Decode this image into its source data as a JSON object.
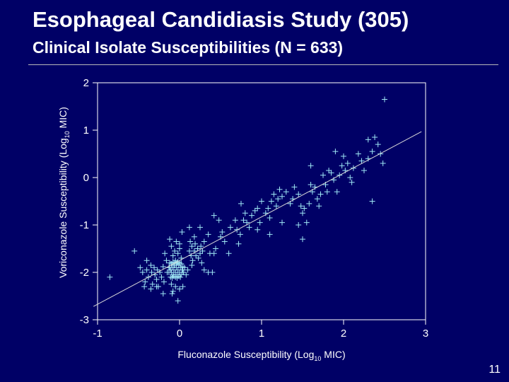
{
  "slide": {
    "title": "Esophageal Candidiasis Study (305)",
    "subtitle": "Clinical Isolate Susceptibilities (N = 633)",
    "page_number": "11"
  },
  "colors": {
    "background": "#000066",
    "text": "#ffffff",
    "marker": "#9fe8f5",
    "axis": "#ffffff"
  },
  "chart_data": {
    "type": "scatter",
    "title": "",
    "xlabel": "Fluconazole Susceptibility (Log10 MIC)",
    "ylabel": "Voriconazole Susceptibility (Log10 MIC)",
    "xlabel_parts": {
      "pre": "Fluconazole Susceptibility (Log",
      "sub": "10",
      "post": " MIC)"
    },
    "ylabel_parts": {
      "pre": "Voriconazole Susceptibility (Log",
      "sub": "10",
      "post": " MIC)"
    },
    "xlim": [
      -1,
      3
    ],
    "ylim": [
      -3,
      2
    ],
    "x_ticks": [
      "-1",
      "0",
      "1",
      "2",
      "3"
    ],
    "y_ticks": [
      "2",
      "1",
      "0",
      "-1",
      "-2",
      "-3"
    ],
    "marker": "plus",
    "grid": false,
    "legend": "none",
    "trend_line": {
      "x1": -1.05,
      "y1": -2.72,
      "x2": 2.95,
      "y2": 0.97
    },
    "points": [
      [
        -0.85,
        -2.1
      ],
      [
        -0.55,
        -1.55
      ],
      [
        -0.48,
        -1.9
      ],
      [
        -0.45,
        -2.0
      ],
      [
        -0.42,
        -2.2
      ],
      [
        -0.4,
        -1.95
      ],
      [
        -0.38,
        -2.1
      ],
      [
        -0.35,
        -1.85
      ],
      [
        -0.34,
        -2.0
      ],
      [
        -0.33,
        -2.25
      ],
      [
        -0.31,
        -1.9
      ],
      [
        -0.3,
        -2.05
      ],
      [
        -0.28,
        -2.15
      ],
      [
        -0.27,
        -1.95
      ],
      [
        -0.26,
        -2.3
      ],
      [
        -0.24,
        -2.0
      ],
      [
        -0.22,
        -2.1
      ],
      [
        -0.2,
        -1.88
      ],
      [
        -0.19,
        -2.2
      ],
      [
        -0.35,
        -2.35
      ],
      [
        -0.28,
        -2.3
      ],
      [
        -0.43,
        -2.3
      ],
      [
        -0.15,
        -2.0
      ],
      [
        -0.18,
        -1.6
      ],
      [
        -0.2,
        -2.45
      ],
      [
        -0.16,
        -1.75
      ],
      [
        -0.4,
        -1.75
      ],
      [
        -0.1,
        -1.45
      ],
      [
        -0.08,
        -1.65
      ],
      [
        -0.06,
        -1.55
      ],
      [
        -0.05,
        -1.75
      ],
      [
        -0.03,
        -1.8
      ],
      [
        -0.02,
        -1.6
      ],
      [
        0.0,
        -1.5
      ],
      [
        0.02,
        -1.7
      ],
      [
        -0.12,
        -1.3
      ],
      [
        -0.04,
        -1.35
      ],
      [
        0.03,
        -1.15
      ],
      [
        0.0,
        -1.4
      ],
      [
        -0.07,
        -1.85
      ],
      [
        -0.12,
        -1.9
      ],
      [
        -0.11,
        -1.95
      ],
      [
        -0.1,
        -2.0
      ],
      [
        -0.09,
        -1.9
      ],
      [
        -0.08,
        -2.05
      ],
      [
        -0.07,
        -1.95
      ],
      [
        -0.06,
        -1.85
      ],
      [
        -0.05,
        -2.0
      ],
      [
        -0.04,
        -1.9
      ],
      [
        -0.03,
        -2.05
      ],
      [
        -0.02,
        -1.95
      ],
      [
        -0.01,
        -1.85
      ],
      [
        0.0,
        -2.0
      ],
      [
        0.01,
        -1.9
      ],
      [
        0.02,
        -2.05
      ],
      [
        0.03,
        -1.95
      ],
      [
        -0.12,
        -1.8
      ],
      [
        -0.1,
        -1.82
      ],
      [
        -0.08,
        -1.78
      ],
      [
        -0.06,
        -1.8
      ],
      [
        -0.04,
        -1.82
      ],
      [
        -0.02,
        -1.78
      ],
      [
        0.0,
        -1.8
      ],
      [
        0.02,
        -1.82
      ],
      [
        -0.11,
        -2.1
      ],
      [
        -0.09,
        -2.12
      ],
      [
        -0.07,
        -2.08
      ],
      [
        -0.05,
        -2.1
      ],
      [
        -0.03,
        -2.12
      ],
      [
        -0.01,
        -2.08
      ],
      [
        0.01,
        -2.1
      ],
      [
        -0.13,
        -2.0
      ],
      [
        -0.13,
        -1.9
      ],
      [
        0.04,
        -1.88
      ],
      [
        0.04,
        -2.0
      ],
      [
        -0.1,
        -2.25
      ],
      [
        -0.05,
        -2.3
      ],
      [
        0.0,
        -2.35
      ],
      [
        -0.09,
        -2.45
      ],
      [
        -0.02,
        -2.6
      ],
      [
        0.04,
        -2.3
      ],
      [
        -0.08,
        -2.4
      ],
      [
        0.05,
        -2.0
      ],
      [
        0.06,
        -1.9
      ],
      [
        0.08,
        -2.05
      ],
      [
        0.1,
        -1.95
      ],
      [
        0.12,
        -1.55
      ],
      [
        0.13,
        -1.35
      ],
      [
        0.14,
        -1.65
      ],
      [
        0.15,
        -1.45
      ],
      [
        0.16,
        -1.75
      ],
      [
        0.18,
        -1.55
      ],
      [
        0.19,
        -1.4
      ],
      [
        0.2,
        -1.65
      ],
      [
        0.22,
        -1.5
      ],
      [
        0.23,
        -1.7
      ],
      [
        0.25,
        -1.6
      ],
      [
        0.26,
        -1.45
      ],
      [
        0.28,
        -1.55
      ],
      [
        0.3,
        -1.35
      ],
      [
        0.18,
        -1.25
      ],
      [
        0.15,
        -1.85
      ],
      [
        0.27,
        -1.8
      ],
      [
        0.12,
        -1.05
      ],
      [
        0.25,
        -1.05
      ],
      [
        0.3,
        -1.95
      ],
      [
        0.35,
        -2.0
      ],
      [
        0.4,
        -2.0
      ],
      [
        0.37,
        -1.6
      ],
      [
        0.42,
        -1.6
      ],
      [
        0.44,
        -1.5
      ],
      [
        0.5,
        -1.25
      ],
      [
        0.52,
        -1.15
      ],
      [
        0.48,
        -0.9
      ],
      [
        0.55,
        -1.35
      ],
      [
        0.62,
        -1.05
      ],
      [
        0.68,
        -0.9
      ],
      [
        0.7,
        -1.1
      ],
      [
        0.74,
        -1.2
      ],
      [
        0.78,
        -0.9
      ],
      [
        0.8,
        -0.75
      ],
      [
        0.82,
        -0.95
      ],
      [
        0.85,
        -1.05
      ],
      [
        0.88,
        -0.8
      ],
      [
        0.92,
        -0.7
      ],
      [
        0.95,
        -0.65
      ],
      [
        0.98,
        -0.95
      ],
      [
        1.0,
        -0.5
      ],
      [
        1.05,
        -0.75
      ],
      [
        1.08,
        -0.65
      ],
      [
        1.1,
        -0.85
      ],
      [
        1.12,
        -0.5
      ],
      [
        1.15,
        -0.35
      ],
      [
        1.18,
        -0.6
      ],
      [
        1.2,
        -0.45
      ],
      [
        1.22,
        -0.25
      ],
      [
        1.25,
        -0.4
      ],
      [
        1.3,
        -0.3
      ],
      [
        1.35,
        -0.55
      ],
      [
        1.38,
        -0.45
      ],
      [
        1.4,
        -0.2
      ],
      [
        1.45,
        -0.35
      ],
      [
        1.48,
        -0.6
      ],
      [
        1.5,
        -0.75
      ],
      [
        1.52,
        -0.65
      ],
      [
        1.55,
        -0.95
      ],
      [
        1.58,
        -0.55
      ],
      [
        1.6,
        -0.15
      ],
      [
        1.62,
        -0.3
      ],
      [
        1.65,
        -0.2
      ],
      [
        1.68,
        -0.45
      ],
      [
        1.7,
        -0.6
      ],
      [
        1.72,
        -0.35
      ],
      [
        1.75,
        0.05
      ],
      [
        1.78,
        -0.15
      ],
      [
        1.8,
        -0.3
      ],
      [
        1.82,
        0.15
      ],
      [
        1.85,
        0.1
      ],
      [
        1.88,
        -0.05
      ],
      [
        1.92,
        -0.3
      ],
      [
        1.95,
        0.05
      ],
      [
        1.98,
        0.25
      ],
      [
        2.02,
        0.15
      ],
      [
        2.05,
        0.3
      ],
      [
        2.08,
        0.0
      ],
      [
        2.12,
        0.2
      ],
      [
        2.18,
        0.5
      ],
      [
        2.22,
        0.35
      ],
      [
        2.25,
        0.15
      ],
      [
        2.3,
        0.4
      ],
      [
        2.35,
        0.55
      ],
      [
        2.38,
        0.85
      ],
      [
        2.42,
        0.7
      ],
      [
        2.45,
        0.5
      ],
      [
        2.48,
        0.3
      ],
      [
        2.5,
        1.65
      ],
      [
        2.3,
        0.8
      ],
      [
        2.35,
        -0.5
      ],
      [
        2.0,
        0.45
      ],
      [
        2.1,
        -0.1
      ],
      [
        1.9,
        0.55
      ],
      [
        1.6,
        0.25
      ],
      [
        0.95,
        -1.1
      ],
      [
        1.1,
        -1.2
      ],
      [
        1.25,
        -0.95
      ],
      [
        1.45,
        -1.0
      ],
      [
        1.5,
        -1.3
      ],
      [
        0.72,
        -1.4
      ],
      [
        0.6,
        -1.6
      ],
      [
        0.35,
        -1.2
      ],
      [
        0.75,
        -0.55
      ],
      [
        0.42,
        -0.8
      ]
    ]
  }
}
